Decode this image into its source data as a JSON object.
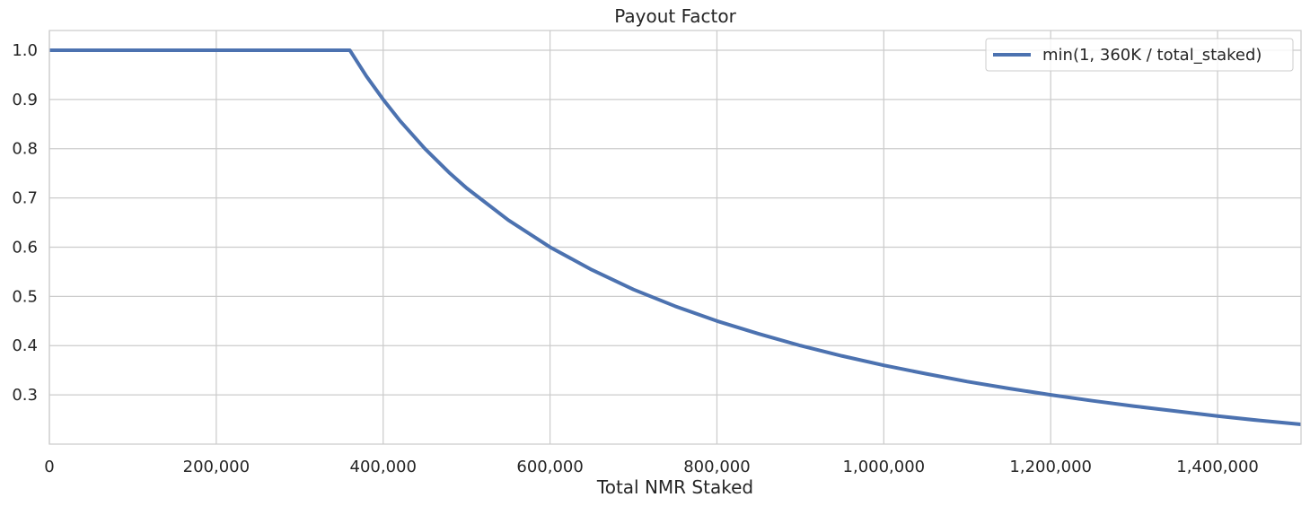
{
  "chart_data": {
    "type": "line",
    "title": "Payout Factor",
    "xlabel": "Total NMR Staked",
    "ylabel": "",
    "xlim": [
      0,
      1500000
    ],
    "ylim": [
      0.2,
      1.04
    ],
    "grid": true,
    "x_ticks": [
      0,
      200000,
      400000,
      600000,
      800000,
      1000000,
      1200000,
      1400000
    ],
    "x_tick_labels": [
      "0",
      "200,000",
      "400,000",
      "600,000",
      "800,000",
      "1,000,000",
      "1,200,000",
      "1,400,000"
    ],
    "y_ticks": [
      0.3,
      0.4,
      0.5,
      0.6,
      0.7,
      0.8,
      0.9,
      1.0
    ],
    "y_tick_labels": [
      "0.3",
      "0.4",
      "0.5",
      "0.6",
      "0.7",
      "0.8",
      "0.9",
      "1.0"
    ],
    "legend_position": "top-right",
    "series": [
      {
        "name": "min(1, 360K / total_staked)",
        "color": "#4c72b0",
        "x": [
          0,
          100000,
          200000,
          300000,
          360000,
          380000,
          400000,
          420000,
          450000,
          480000,
          500000,
          550000,
          600000,
          650000,
          700000,
          750000,
          800000,
          850000,
          900000,
          950000,
          1000000,
          1050000,
          1100000,
          1150000,
          1200000,
          1250000,
          1300000,
          1350000,
          1400000,
          1450000,
          1500000
        ],
        "y": [
          1.0,
          1.0,
          1.0,
          1.0,
          1.0,
          0.947,
          0.9,
          0.857,
          0.8,
          0.75,
          0.72,
          0.655,
          0.6,
          0.554,
          0.514,
          0.48,
          0.45,
          0.424,
          0.4,
          0.379,
          0.36,
          0.343,
          0.327,
          0.313,
          0.3,
          0.288,
          0.277,
          0.267,
          0.257,
          0.248,
          0.24
        ]
      }
    ]
  }
}
